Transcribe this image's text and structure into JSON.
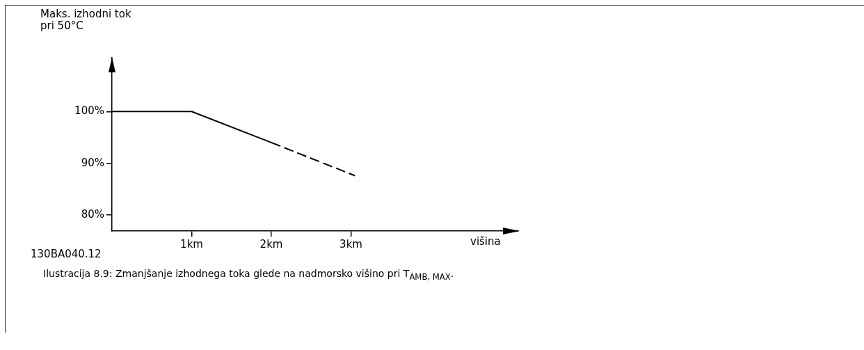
{
  "chart_data": {
    "type": "line",
    "ylabel": "Maks. izhodni tok\npri 50°C",
    "xlabel": "višina",
    "xlim": [
      0,
      5.1
    ],
    "ylim": [
      76.9,
      110.4
    ],
    "xticks": [
      {
        "value": 1,
        "label": "1km"
      },
      {
        "value": 2,
        "label": "2km"
      },
      {
        "value": 3,
        "label": "3km"
      }
    ],
    "yticks": [
      {
        "value": 80,
        "label": "80%"
      },
      {
        "value": 90,
        "label": "90%"
      },
      {
        "value": 100,
        "label": "100%"
      }
    ],
    "series": [
      {
        "color": "#000000",
        "line_style": "solid",
        "x": [
          0,
          1,
          2
        ],
        "values": [
          100,
          100,
          94
        ]
      },
      {
        "color": "#000000",
        "line_style": "dashed",
        "x": [
          2,
          3.05
        ],
        "values": [
          94,
          87.6
        ]
      }
    ],
    "marker": "none",
    "annotations": [
      "130BA040.12",
      "Ilustracija 8.9: Zmanjšanje izhodnega toka glede na nadmorsko višino pri T$_{AMB, MAX}$."
    ]
  }
}
